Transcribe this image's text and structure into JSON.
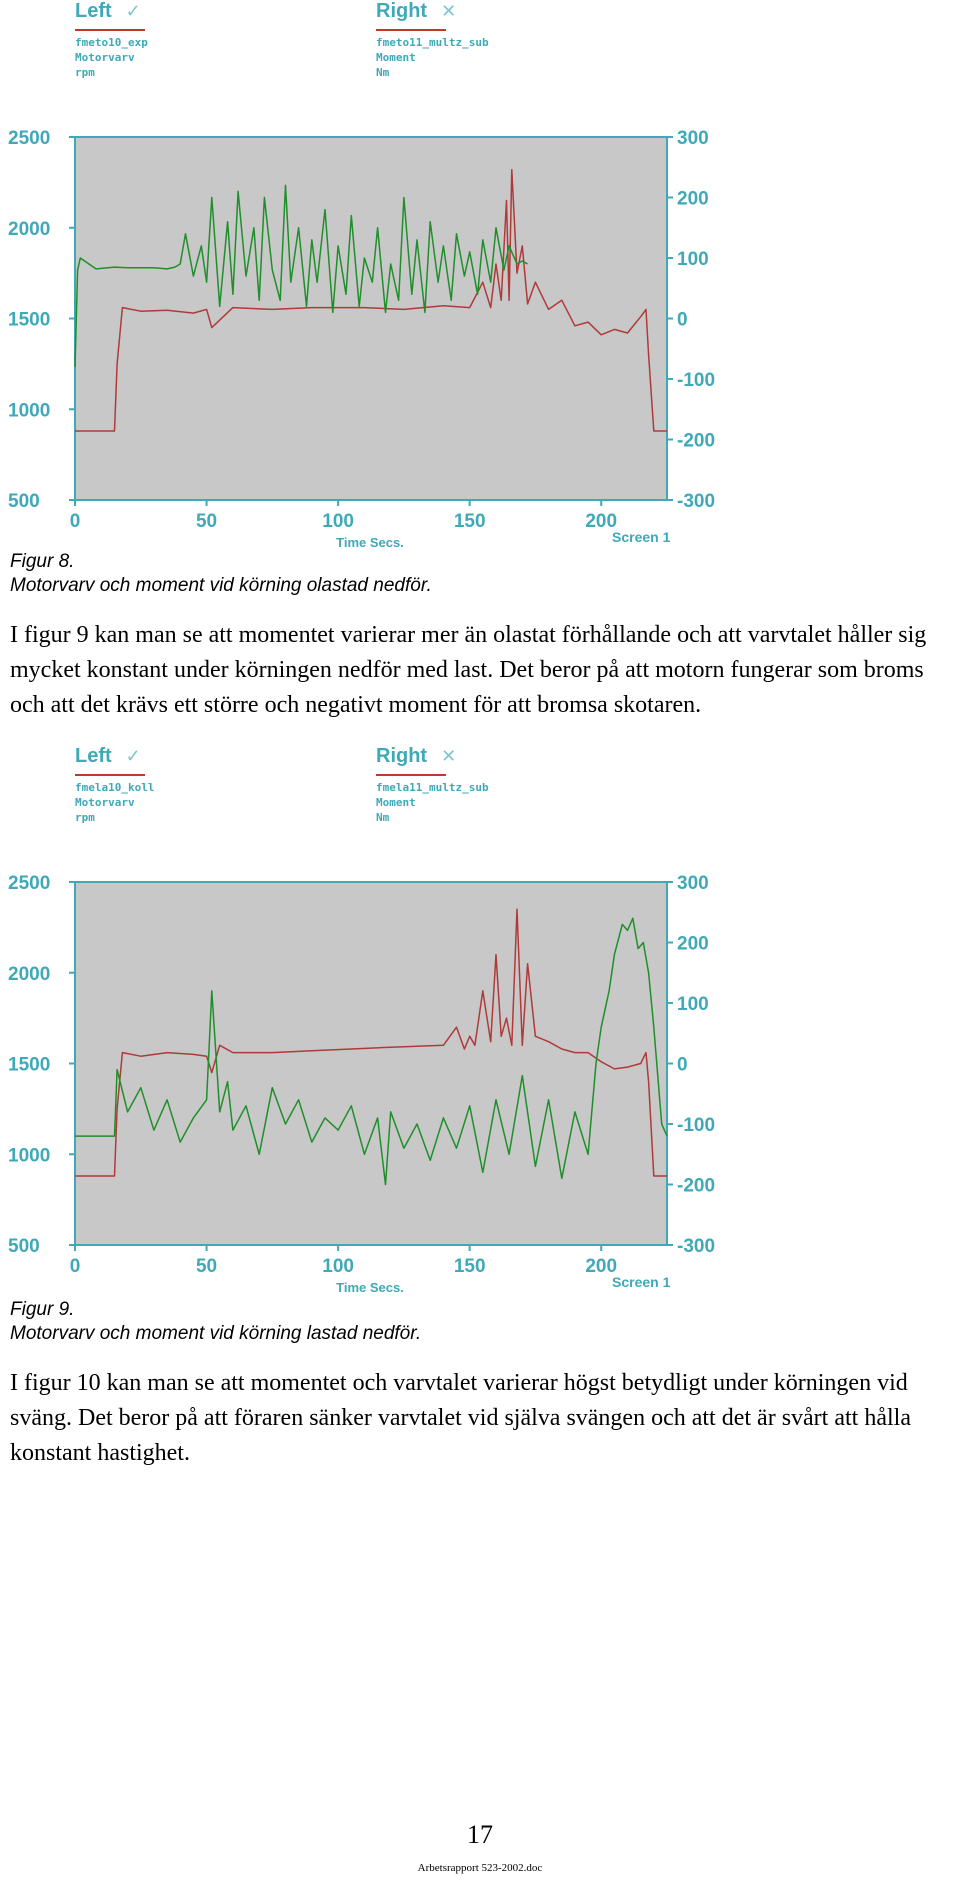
{
  "figures": [
    {
      "legend_left": {
        "title": "Left",
        "mark": "✓",
        "lines": [
          "fmeto10_exp",
          "Motorvarv",
          "rpm"
        ]
      },
      "legend_right": {
        "title": "Right",
        "mark": "✕",
        "lines": [
          "fmeto11_multz_sub",
          "Moment",
          "Nm"
        ]
      },
      "caption": [
        "Figur 8.",
        "Motorvarv och moment vid körning olastad nedför."
      ]
    },
    {
      "legend_left": {
        "title": "Left",
        "mark": "✓",
        "lines": [
          "fmela10_koll",
          "Motorvarv",
          "rpm"
        ]
      },
      "legend_right": {
        "title": "Right",
        "mark": "✕",
        "lines": [
          "fmela11_multz_sub",
          "Moment",
          "Nm"
        ]
      },
      "caption": [
        "Figur 9.",
        "Motorvarv och moment vid körning lastad nedför."
      ]
    }
  ],
  "paragraphs": [
    "I figur 9 kan man se att momentet varierar mer än olastat förhållande och att varvtalet håller sig mycket konstant under körningen nedför med last. Det beror på att motorn fungerar som broms och att det krävs ett större och negativt moment för att bromsa skotaren.",
    "I figur 10 kan man se att momentet och varvtalet varierar högst betydligt under körningen vid sväng. Det beror på att föraren sänker varvtalet vid själva svängen och att det är svårt att hålla konstant hastighet."
  ],
  "page_number": "17",
  "footer": "Arbetsrapport 523-2002.doc",
  "colors": {
    "plot_bg": "#c8c8c8",
    "axis": "#3fa9b8",
    "rpm_series": "#b03a3a",
    "moment_series": "#1f8f2a"
  },
  "chart_data": [
    {
      "type": "line",
      "xlabel": "Time Secs.",
      "corner_label": "Screen 1",
      "xlim": [
        0,
        225
      ],
      "x_ticks": [
        "0",
        "50",
        "100",
        "150",
        "200"
      ],
      "y_left": {
        "lim": [
          500,
          2500
        ],
        "ticks": [
          "500",
          "1000",
          "1500",
          "2000",
          "2500"
        ]
      },
      "y_right": {
        "lim": [
          -300,
          300
        ],
        "ticks": [
          "-300",
          "-200",
          "-100",
          "0",
          "100",
          "200",
          "300"
        ]
      },
      "series": [
        {
          "axis": "left",
          "color": "#b03a3a",
          "x": [
            0,
            15,
            16,
            18,
            25,
            35,
            45,
            50,
            52,
            60,
            75,
            90,
            110,
            125,
            140,
            150,
            155,
            158,
            160,
            162,
            164,
            165,
            166,
            168,
            170,
            172,
            175,
            180,
            185,
            190,
            195,
            200,
            205,
            210,
            215,
            217,
            218,
            220,
            225
          ],
          "y": [
            880,
            880,
            1250,
            1560,
            1540,
            1545,
            1530,
            1550,
            1450,
            1560,
            1550,
            1560,
            1560,
            1550,
            1570,
            1560,
            1700,
            1560,
            1800,
            1600,
            2150,
            1600,
            2320,
            1750,
            1900,
            1580,
            1700,
            1550,
            1600,
            1460,
            1480,
            1410,
            1440,
            1420,
            1510,
            1550,
            1300,
            880,
            880
          ]
        },
        {
          "axis": "right",
          "color": "#1f8f2a",
          "x": [
            0,
            1,
            2,
            8,
            15,
            20,
            30,
            35,
            38,
            40,
            42,
            45,
            48,
            50,
            52,
            55,
            58,
            60,
            62,
            65,
            68,
            70,
            72,
            75,
            78,
            80,
            82,
            85,
            88,
            90,
            92,
            95,
            98,
            100,
            103,
            105,
            108,
            110,
            113,
            115,
            118,
            120,
            123,
            125,
            128,
            130,
            133,
            135,
            138,
            140,
            143,
            145,
            148,
            150,
            153,
            155,
            158,
            160,
            163,
            165,
            168,
            170,
            172
          ],
          "y": [
            -80,
            80,
            100,
            82,
            85,
            84,
            84,
            82,
            85,
            90,
            140,
            70,
            120,
            60,
            200,
            20,
            160,
            40,
            210,
            70,
            150,
            30,
            200,
            80,
            30,
            220,
            60,
            150,
            20,
            130,
            60,
            180,
            10,
            120,
            40,
            170,
            20,
            100,
            60,
            150,
            10,
            90,
            30,
            200,
            40,
            130,
            10,
            160,
            60,
            120,
            30,
            140,
            70,
            110,
            40,
            130,
            60,
            150,
            80,
            120,
            90,
            95,
            90
          ]
        }
      ]
    },
    {
      "type": "line",
      "xlabel": "Time Secs.",
      "corner_label": "Screen 1",
      "xlim": [
        0,
        225
      ],
      "x_ticks": [
        "0",
        "50",
        "100",
        "150",
        "200"
      ],
      "y_left": {
        "lim": [
          500,
          2500
        ],
        "ticks": [
          "500",
          "1000",
          "1500",
          "2000",
          "2500"
        ]
      },
      "y_right": {
        "lim": [
          -300,
          300
        ],
        "ticks": [
          "-300",
          "-200",
          "-100",
          "0",
          "100",
          "200",
          "300"
        ]
      },
      "series": [
        {
          "axis": "left",
          "color": "#b03a3a",
          "x": [
            0,
            15,
            16,
            18,
            25,
            35,
            45,
            50,
            52,
            55,
            60,
            75,
            90,
            105,
            120,
            140,
            145,
            148,
            150,
            152,
            155,
            158,
            160,
            162,
            164,
            166,
            168,
            170,
            172,
            175,
            180,
            185,
            190,
            195,
            200,
            205,
            210,
            215,
            217,
            218,
            220,
            225
          ],
          "y": [
            880,
            880,
            1250,
            1560,
            1540,
            1560,
            1550,
            1540,
            1450,
            1600,
            1560,
            1560,
            1570,
            1580,
            1590,
            1600,
            1700,
            1580,
            1650,
            1600,
            1900,
            1620,
            2100,
            1650,
            1750,
            1600,
            2350,
            1600,
            2050,
            1650,
            1620,
            1580,
            1560,
            1560,
            1510,
            1470,
            1480,
            1500,
            1560,
            1400,
            880,
            880
          ]
        },
        {
          "axis": "right",
          "color": "#1f8f2a",
          "x": [
            0,
            15,
            16,
            20,
            25,
            30,
            35,
            40,
            45,
            50,
            52,
            55,
            58,
            60,
            65,
            70,
            75,
            80,
            85,
            90,
            95,
            100,
            105,
            110,
            115,
            118,
            120,
            125,
            130,
            135,
            140,
            145,
            150,
            155,
            160,
            165,
            170,
            175,
            180,
            185,
            190,
            195,
            198,
            200,
            203,
            205,
            208,
            210,
            212,
            214,
            216,
            218,
            220,
            223,
            225
          ],
          "y": [
            -120,
            -120,
            -10,
            -80,
            -40,
            -110,
            -60,
            -130,
            -90,
            -60,
            120,
            -80,
            -30,
            -110,
            -70,
            -150,
            -40,
            -100,
            -60,
            -130,
            -90,
            -110,
            -70,
            -150,
            -90,
            -200,
            -80,
            -140,
            -100,
            -160,
            -90,
            -140,
            -70,
            -180,
            -60,
            -150,
            -20,
            -170,
            -60,
            -190,
            -80,
            -150,
            0,
            60,
            120,
            180,
            230,
            220,
            240,
            190,
            200,
            150,
            60,
            -100,
            -120
          ]
        }
      ]
    }
  ]
}
